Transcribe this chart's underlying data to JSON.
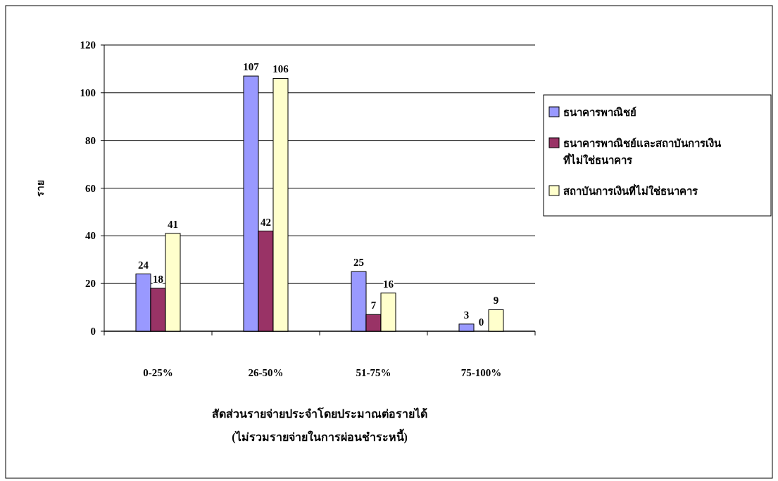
{
  "chart_data": {
    "type": "bar",
    "xlabel": "สัดส่วนรายจ่ายประจำโดยประมาณต่อรายได้\n(ไม่รวมรายจ่ายในการผ่อนชำระหนี้)",
    "ylabel": "ราย",
    "categories": [
      "0-25%",
      "26-50%",
      "51-75%",
      "75-100%"
    ],
    "series": [
      {
        "name": "ธนาคารพาณิชย์",
        "color": "#9999ff",
        "values": [
          24,
          107,
          25,
          3
        ]
      },
      {
        "name": "ธนาคารพาณิชย์และสถาบันการเงินที่ไม่ใช่ธนาคาร",
        "color": "#993366",
        "values": [
          18,
          42,
          7,
          0
        ]
      },
      {
        "name": "สถาบันการเงินที่ไม่ใช่ธนาคาร",
        "color": "#ffffcc",
        "values": [
          41,
          106,
          16,
          9
        ]
      }
    ],
    "ylim": [
      0,
      120
    ],
    "yticks": [
      0,
      20,
      40,
      60,
      80,
      100,
      120
    ],
    "grid": "y",
    "legend": "right",
    "data_labels": true
  }
}
